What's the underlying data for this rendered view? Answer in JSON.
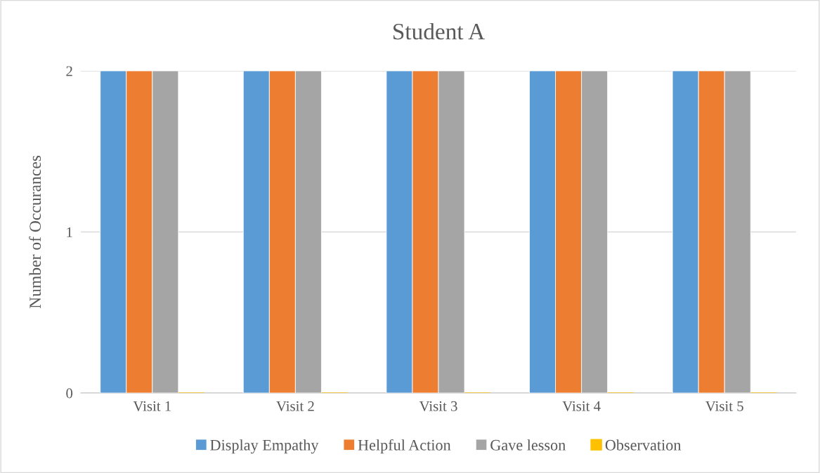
{
  "chart_data": {
    "type": "bar",
    "title": "Student A",
    "ylabel": "Number of Occurances",
    "categories": [
      "Visit 1",
      "Visit 2",
      "Visit 3",
      "Visit 4",
      "Visit 5"
    ],
    "series": [
      {
        "name": "Display Empathy",
        "color": "#5b9bd5",
        "values": [
          2,
          2,
          2,
          2,
          2
        ]
      },
      {
        "name": "Helpful Action",
        "color": "#ed7d31",
        "values": [
          2,
          2,
          2,
          2,
          2
        ]
      },
      {
        "name": "Gave lesson",
        "color": "#a5a5a5",
        "values": [
          2,
          2,
          2,
          2,
          2
        ]
      },
      {
        "name": "Observation",
        "color": "#ffc000",
        "values": [
          0,
          0,
          0,
          0,
          0
        ]
      }
    ],
    "ylim": [
      0,
      2
    ],
    "yticks": [
      0,
      1,
      2
    ],
    "grid": "y",
    "legend": "bottom"
  }
}
